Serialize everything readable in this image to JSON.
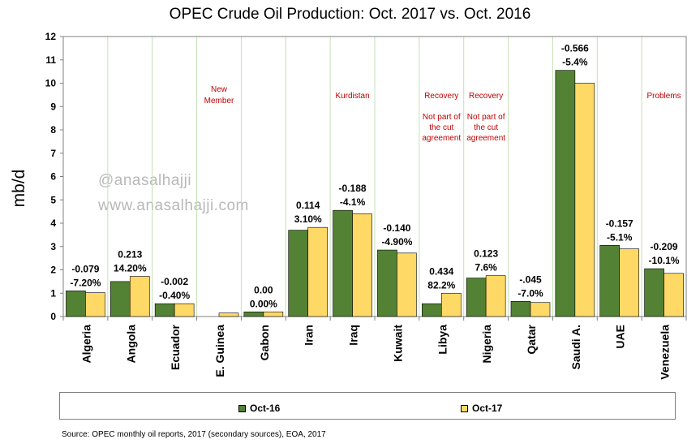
{
  "chart_data": {
    "type": "bar",
    "title": "OPEC Crude Oil Production: Oct. 2017 vs. Oct. 2016",
    "xlabel": "",
    "ylabel": "mb/d",
    "ylim": [
      0,
      12
    ],
    "yticks": [
      "0",
      "1",
      "2",
      "3",
      "4",
      "5",
      "6",
      "7",
      "8",
      "9",
      "10",
      "11",
      "12"
    ],
    "grid": "vertical",
    "legend_position": "bottom",
    "categories": [
      "Algeria",
      "Angola",
      "Ecuador",
      "E. Guinea",
      "Gabon",
      "Iran",
      "Iraq",
      "Kuwait",
      "Libya",
      "Nigeria",
      "Qatar",
      "Saudi A.",
      "UAE",
      "Venezuela"
    ],
    "series": [
      {
        "name": "Oct-16",
        "color": "#548235",
        "values": [
          1.1,
          1.5,
          0.55,
          0.0,
          0.2,
          3.7,
          4.55,
          2.85,
          0.55,
          1.65,
          0.65,
          10.55,
          3.05,
          2.05
        ]
      },
      {
        "name": "Oct-17",
        "color": "#ffd966",
        "values": [
          1.02,
          1.72,
          0.55,
          0.15,
          0.2,
          3.82,
          4.4,
          2.72,
          1.0,
          1.75,
          0.6,
          10.0,
          2.9,
          1.85
        ]
      }
    ],
    "change_labels": [
      {
        "category": "Algeria",
        "abs": "-0.079",
        "pct": "-7.20%"
      },
      {
        "category": "Angola",
        "abs": "0.213",
        "pct": "14.20%"
      },
      {
        "category": "Ecuador",
        "abs": "-0.002",
        "pct": "-0.40%"
      },
      {
        "category": "Gabon",
        "abs": "0.00",
        "pct": "0.00%"
      },
      {
        "category": "Iran",
        "abs": "0.114",
        "pct": "3.10%"
      },
      {
        "category": "Iraq",
        "abs": "-0.188",
        "pct": "-4.1%"
      },
      {
        "category": "Kuwait",
        "abs": "-0.140",
        "pct": "-4.90%"
      },
      {
        "category": "Libya",
        "abs": "0.434",
        "pct": "82.2%"
      },
      {
        "category": "Nigeria",
        "abs": "0.123",
        "pct": "7.6%"
      },
      {
        "category": "Qatar",
        "abs": "-.045",
        "pct": "-7.0%"
      },
      {
        "category": "Saudi A.",
        "abs": "-0.566",
        "pct": "-5.4%"
      },
      {
        "category": "UAE",
        "abs": "-0.157",
        "pct": "-5.1%"
      },
      {
        "category": "Venezuela",
        "abs": "-0.209",
        "pct": "-10.1%"
      }
    ],
    "annotations": [
      {
        "category": "E. Guinea",
        "lines": [
          "New",
          "Member"
        ]
      },
      {
        "category": "Iraq",
        "lines": [
          "Kurdistan"
        ]
      },
      {
        "category": "Libya",
        "lines": [
          "Recovery",
          "",
          "Not part of",
          "the cut",
          "agreement"
        ]
      },
      {
        "category": "Nigeria",
        "lines": [
          "Recovery",
          "",
          "Not part of",
          "the cut",
          "agreement"
        ]
      },
      {
        "category": "Venezuela",
        "lines": [
          "Problems"
        ]
      }
    ],
    "annotation_color": "#c00000",
    "source": "Source: OPEC monthly oil reports, 2017 (secondary sources), EOA, 2017"
  },
  "watermark": [
    "@anasalhajji",
    "www.anasalhajji.com"
  ]
}
